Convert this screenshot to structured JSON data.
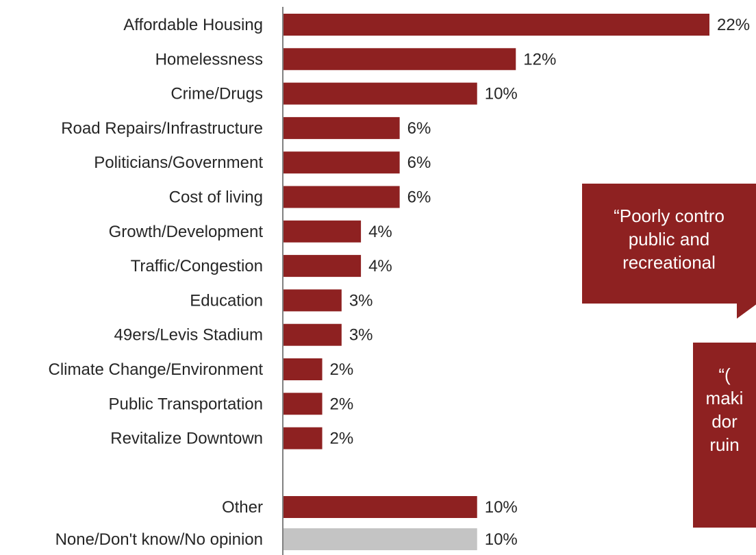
{
  "chart_data": {
    "type": "bar",
    "orientation": "horizontal",
    "categories": [
      "Affordable Housing",
      "Homelessness",
      "Crime/Drugs",
      "Road Repairs/Infrastructure",
      "Politicians/Government",
      "Cost of living",
      "Growth/Development",
      "Traffic/Congestion",
      "Education",
      "49ers/Levis Stadium",
      "Climate Change/Environment",
      "Public Transportation",
      "Revitalize Downtown",
      "Other",
      "None/Don't know/No opinion"
    ],
    "values": [
      22,
      12,
      10,
      6,
      6,
      6,
      4,
      4,
      3,
      3,
      2,
      2,
      2,
      10,
      10
    ],
    "value_labels": [
      "22%",
      "12%",
      "10%",
      "6%",
      "6%",
      "6%",
      "4%",
      "4%",
      "3%",
      "3%",
      "2%",
      "2%",
      "2%",
      "10%",
      "10%"
    ],
    "colors": {
      "bar": "#8e2121",
      "bar_none": "#c4c4c4",
      "axis": "#808080"
    },
    "xlim": [
      0,
      22
    ],
    "gridlines": false,
    "legend": "none"
  },
  "callouts": [
    {
      "lines": [
        "“Poorly contro",
        "public and",
        "recreational"
      ],
      "color": "#8e2121"
    },
    {
      "lines": [
        "“(",
        "maki",
        "dor",
        "ruin"
      ],
      "color": "#8e2121"
    }
  ]
}
